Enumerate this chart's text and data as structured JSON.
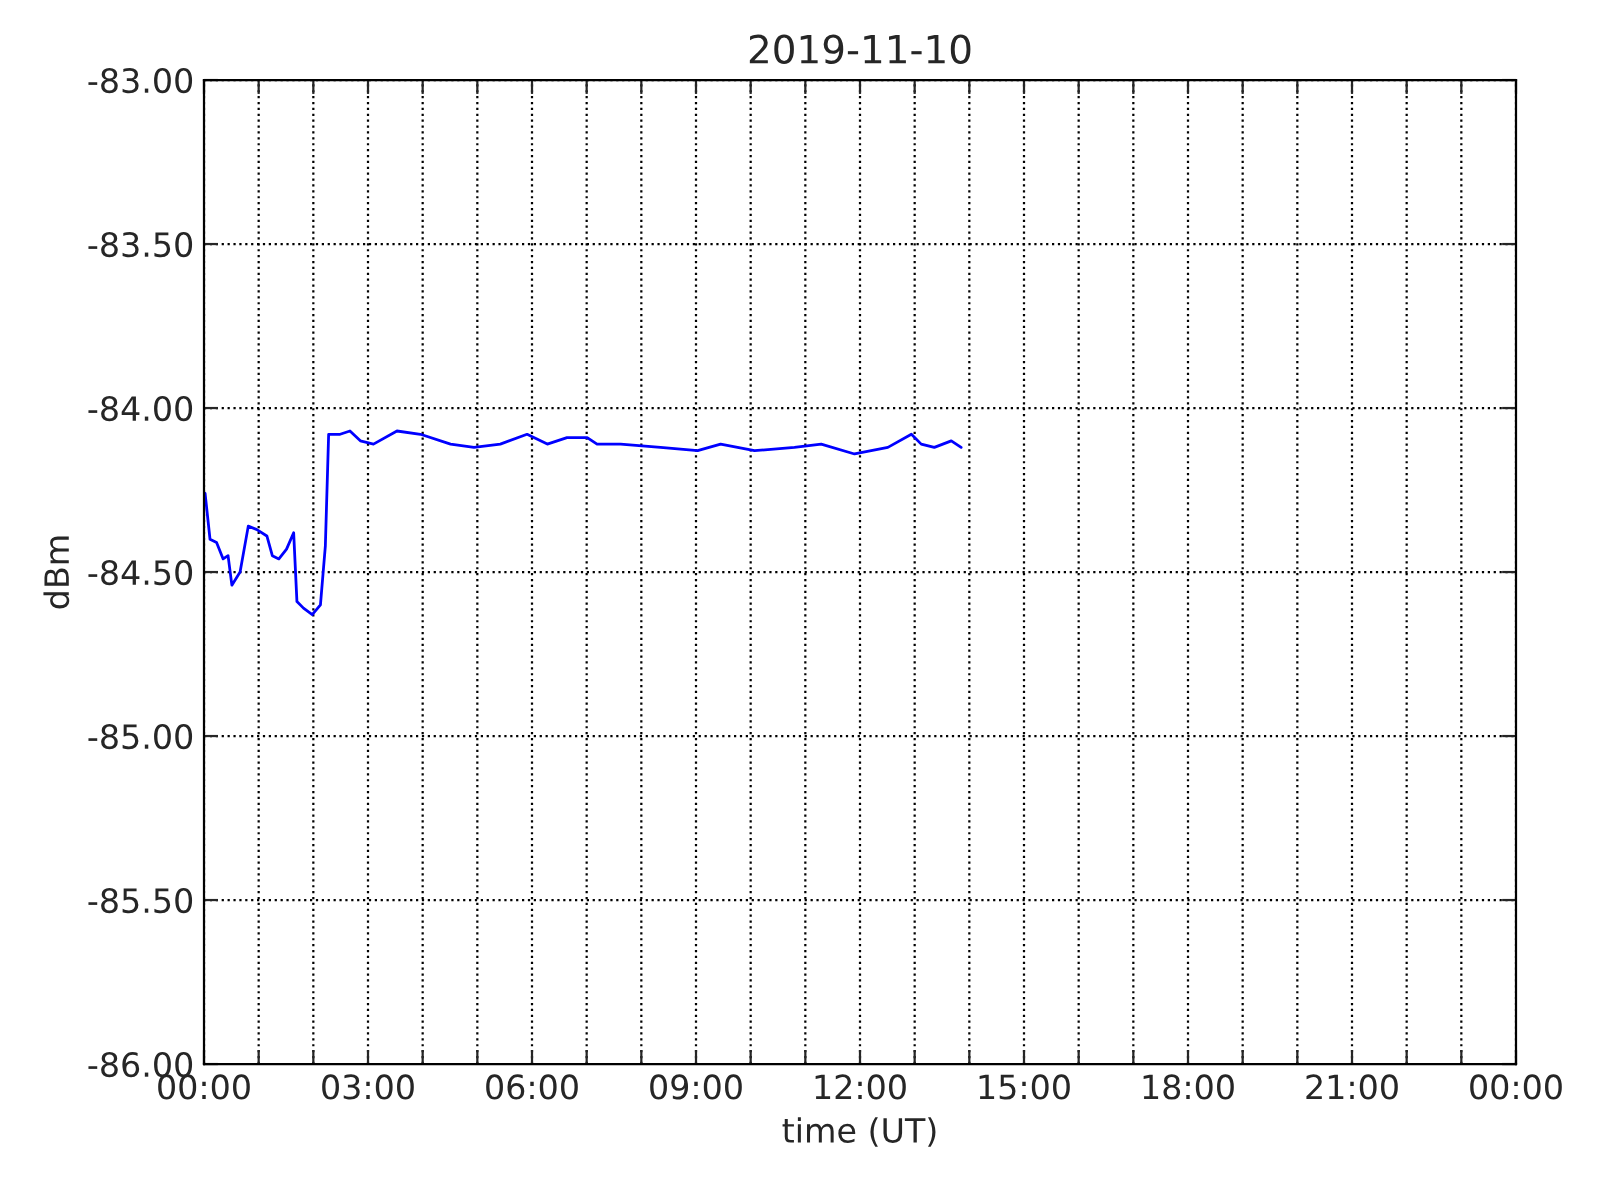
{
  "chart_data": {
    "type": "line",
    "title": "2019-11-10",
    "xlabel": "time (UT)",
    "ylabel": "dBm",
    "xlim": [
      0,
      24
    ],
    "xticks": [
      {
        "value": 0,
        "label": "00:00"
      },
      {
        "value": 1,
        "label": null
      },
      {
        "value": 2,
        "label": null
      },
      {
        "value": 3,
        "label": "03:00"
      },
      {
        "value": 4,
        "label": null
      },
      {
        "value": 5,
        "label": null
      },
      {
        "value": 6,
        "label": "06:00"
      },
      {
        "value": 7,
        "label": null
      },
      {
        "value": 8,
        "label": null
      },
      {
        "value": 9,
        "label": "09:00"
      },
      {
        "value": 10,
        "label": null
      },
      {
        "value": 11,
        "label": null
      },
      {
        "value": 12,
        "label": "12:00"
      },
      {
        "value": 13,
        "label": null
      },
      {
        "value": 14,
        "label": null
      },
      {
        "value": 15,
        "label": "15:00"
      },
      {
        "value": 16,
        "label": null
      },
      {
        "value": 17,
        "label": null
      },
      {
        "value": 18,
        "label": "18:00"
      },
      {
        "value": 19,
        "label": null
      },
      {
        "value": 20,
        "label": null
      },
      {
        "value": 21,
        "label": "21:00"
      },
      {
        "value": 22,
        "label": null
      },
      {
        "value": 23,
        "label": null
      },
      {
        "value": 24,
        "label": "00:00"
      }
    ],
    "ylim": [
      -86,
      -83
    ],
    "yticks": [
      {
        "value": -86,
        "label": "-86.00"
      },
      {
        "value": -85.5,
        "label": "-85.50"
      },
      {
        "value": -85,
        "label": "-85.00"
      },
      {
        "value": -84.5,
        "label": "-84.50"
      },
      {
        "value": -84,
        "label": "-84.00"
      },
      {
        "value": -83.5,
        "label": "-83.50"
      },
      {
        "value": -83,
        "label": "-83.00"
      }
    ],
    "grid": true,
    "legend": false,
    "series": [
      {
        "color": "#0000ff",
        "x": [
          0.02,
          0.11,
          0.23,
          0.35,
          0.44,
          0.51,
          0.66,
          0.81,
          0.96,
          1.15,
          1.25,
          1.37,
          1.51,
          1.64,
          1.7,
          1.82,
          1.98,
          2.13,
          2.22,
          2.28,
          2.49,
          2.67,
          2.86,
          3.1,
          3.53,
          3.96,
          4.51,
          4.94,
          5.42,
          5.91,
          6.28,
          6.64,
          7.01,
          7.19,
          7.62,
          8.35,
          9.03,
          9.45,
          10.07,
          10.8,
          11.29,
          11.9,
          12.51,
          12.94,
          13.12,
          13.36,
          13.67,
          13.85
        ],
        "values": [
          -84.26,
          -84.4,
          -84.41,
          -84.46,
          -84.45,
          -84.54,
          -84.5,
          -84.36,
          -84.37,
          -84.39,
          -84.45,
          -84.46,
          -84.43,
          -84.38,
          -84.59,
          -84.61,
          -84.63,
          -84.6,
          -84.42,
          -84.08,
          -84.08,
          -84.07,
          -84.1,
          -84.11,
          -84.07,
          -84.08,
          -84.11,
          -84.12,
          -84.11,
          -84.08,
          -84.11,
          -84.09,
          -84.09,
          -84.11,
          -84.11,
          -84.12,
          -84.13,
          -84.11,
          -84.13,
          -84.12,
          -84.11,
          -84.14,
          -84.12,
          -84.08,
          -84.11,
          -84.12,
          -84.1,
          -84.12
        ]
      }
    ]
  }
}
